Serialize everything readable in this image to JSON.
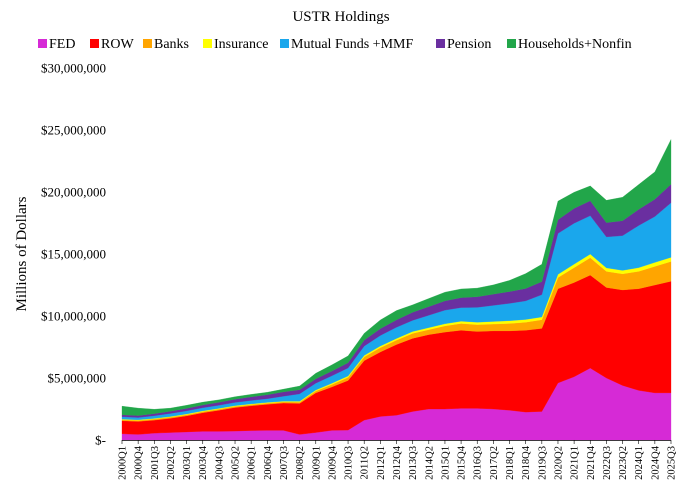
{
  "chart_data": {
    "type": "area",
    "stacked": true,
    "title": "USTR Holdings",
    "xlabel": "",
    "ylabel": "Millions of Dollars",
    "ylim": [
      0,
      30000000
    ],
    "yticks": [
      0,
      5000000,
      10000000,
      15000000,
      20000000,
      25000000,
      30000000
    ],
    "ytick_labels": [
      "$-",
      "$5,000,000",
      "$10,000,000",
      "$15,000,000",
      "$20,000,000",
      "$25,000,000",
      "$30,000,000"
    ],
    "grid": false,
    "legend_position": "top",
    "x_tick_labels": [
      "2000Q1",
      "2000Q4",
      "2001Q3",
      "2002Q2",
      "2003Q1",
      "2003Q4",
      "2004Q3",
      "2005Q2",
      "2006Q1",
      "2006Q4",
      "2007Q3",
      "2008Q2",
      "2009Q1",
      "2009Q4",
      "2010Q3",
      "2011Q2",
      "2012Q1",
      "2012Q4",
      "2013Q3",
      "2014Q2",
      "2015Q1",
      "2015Q4",
      "2016Q3",
      "2017Q2",
      "2018Q1",
      "2018Q4",
      "2019Q3",
      "2020Q2",
      "2021Q1",
      "2021Q4",
      "2022Q3",
      "2023Q2",
      "2024Q1",
      "2024Q4",
      "2025Q3"
    ],
    "x": [
      "2000Q1",
      "2000Q4",
      "2001Q3",
      "2002Q2",
      "2003Q1",
      "2003Q4",
      "2004Q3",
      "2005Q2",
      "2006Q1",
      "2006Q4",
      "2007Q3",
      "2008Q2",
      "2009Q1",
      "2009Q4",
      "2010Q3",
      "2011Q2",
      "2012Q1",
      "2012Q4",
      "2013Q3",
      "2014Q2",
      "2015Q1",
      "2015Q4",
      "2016Q3",
      "2017Q2",
      "2018Q1",
      "2018Q4",
      "2019Q3",
      "2020Q2",
      "2021Q1",
      "2021Q4",
      "2022Q3",
      "2023Q2",
      "2024Q1",
      "2024Q4",
      "2025Q3"
    ],
    "series": [
      {
        "name": "FED",
        "color": "#d62ad6",
        "values": [
          500000,
          450000,
          550000,
          600000,
          650000,
          700000,
          700000,
          720000,
          760000,
          780000,
          780000,
          450000,
          600000,
          780000,
          800000,
          1600000,
          1900000,
          2000000,
          2300000,
          2500000,
          2500000,
          2550000,
          2550000,
          2500000,
          2400000,
          2250000,
          2300000,
          4600000,
          5100000,
          5800000,
          5000000,
          4400000,
          4000000,
          3800000,
          3800000
        ]
      },
      {
        "name": "ROW",
        "color": "#ff0000",
        "values": [
          1050000,
          1050000,
          1050000,
          1150000,
          1300000,
          1500000,
          1700000,
          1900000,
          2000000,
          2100000,
          2200000,
          2500000,
          3200000,
          3500000,
          4000000,
          4800000,
          5200000,
          5700000,
          5900000,
          6000000,
          6200000,
          6300000,
          6200000,
          6300000,
          6400000,
          6600000,
          6700000,
          7600000,
          7600000,
          7500000,
          7300000,
          7700000,
          8200000,
          8700000,
          9000000
        ]
      },
      {
        "name": "Banks",
        "color": "#ffa500",
        "values": [
          80000,
          80000,
          90000,
          90000,
          90000,
          90000,
          90000,
          90000,
          90000,
          90000,
          90000,
          100000,
          150000,
          200000,
          250000,
          300000,
          350000,
          350000,
          400000,
          400000,
          500000,
          550000,
          550000,
          550000,
          600000,
          650000,
          700000,
          900000,
          1200000,
          1400000,
          1300000,
          1300000,
          1400000,
          1500000,
          1600000
        ]
      },
      {
        "name": "Insurance",
        "color": "#ffff00",
        "values": [
          50000,
          50000,
          50000,
          50000,
          60000,
          60000,
          60000,
          60000,
          60000,
          60000,
          60000,
          70000,
          80000,
          100000,
          110000,
          120000,
          130000,
          140000,
          150000,
          160000,
          170000,
          180000,
          200000,
          210000,
          220000,
          220000,
          220000,
          260000,
          280000,
          290000,
          280000,
          280000,
          300000,
          320000,
          330000
        ]
      },
      {
        "name": "Mutual Funds +MMF",
        "color": "#1aa7ec",
        "values": [
          200000,
          180000,
          220000,
          250000,
          250000,
          250000,
          250000,
          260000,
          280000,
          300000,
          400000,
          600000,
          550000,
          600000,
          650000,
          750000,
          850000,
          900000,
          900000,
          1000000,
          1100000,
          1100000,
          1200000,
          1300000,
          1400000,
          1500000,
          1800000,
          3300000,
          3300000,
          3100000,
          2500000,
          2800000,
          3400000,
          3700000,
          4400000
        ]
      },
      {
        "name": "Pension",
        "color": "#6a2fa0",
        "values": [
          150000,
          160000,
          170000,
          180000,
          200000,
          220000,
          240000,
          260000,
          290000,
          320000,
          350000,
          330000,
          350000,
          380000,
          420000,
          480000,
          550000,
          600000,
          650000,
          700000,
          750000,
          800000,
          850000,
          900000,
          950000,
          1000000,
          1050000,
          1100000,
          1200000,
          1200000,
          1150000,
          1200000,
          1300000,
          1400000,
          1500000
        ]
      },
      {
        "name": "Households+Nonfin",
        "color": "#22a64a",
        "values": [
          700000,
          600000,
          350000,
          250000,
          250000,
          230000,
          200000,
          200000,
          200000,
          200000,
          220000,
          300000,
          450000,
          500000,
          550000,
          550000,
          700000,
          750000,
          600000,
          650000,
          700000,
          700000,
          700000,
          750000,
          900000,
          1200000,
          1400000,
          1500000,
          1300000,
          1200000,
          1800000,
          1900000,
          2000000,
          2200000,
          3600000
        ]
      }
    ]
  }
}
